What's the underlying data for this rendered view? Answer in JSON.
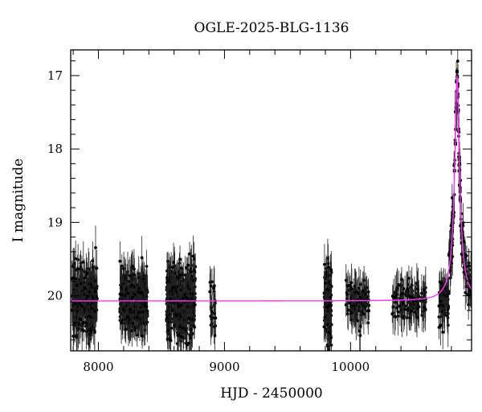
{
  "chart_data": {
    "type": "scatter",
    "title": "OGLE-2025-BLG-1136",
    "xlabel": "HJD - 2450000",
    "ylabel": "I magnitude",
    "xlim": [
      7780,
      10960
    ],
    "ylim": [
      20.75,
      16.65
    ],
    "y_inverted": true,
    "x_ticks": [
      8000,
      9000,
      10000
    ],
    "y_ticks": [
      17,
      18,
      19,
      20
    ],
    "grid": false,
    "legend": "none",
    "colors": {
      "points": "#000000",
      "model": "#ff33ff"
    },
    "model": {
      "baseline_mag": 20.07,
      "peak_time": 10845,
      "peak_mag": 17.0,
      "timescale_days": 28
    },
    "observing_seasons": [
      {
        "start": 7790,
        "end": 7990,
        "mean_mag": 20.05,
        "scatter": 0.32,
        "density": 1.0
      },
      {
        "start": 8170,
        "end": 8390,
        "mean_mag": 20.05,
        "scatter": 0.28,
        "density": 1.0
      },
      {
        "start": 8540,
        "end": 8770,
        "mean_mag": 20.08,
        "scatter": 0.35,
        "density": 1.1
      },
      {
        "start": 8880,
        "end": 8930,
        "mean_mag": 20.08,
        "scatter": 0.3,
        "density": 0.3
      },
      {
        "start": 9790,
        "end": 9850,
        "mean_mag": 20.1,
        "scatter": 0.38,
        "density": 1.2
      },
      {
        "start": 9960,
        "end": 10150,
        "mean_mag": 20.1,
        "scatter": 0.22,
        "density": 0.35
      },
      {
        "start": 10330,
        "end": 10600,
        "mean_mag": 20.05,
        "scatter": 0.18,
        "density": 0.3
      },
      {
        "start": 10700,
        "end": 10960,
        "mean_mag": 20.08,
        "scatter": 0.22,
        "density": 0.5
      }
    ]
  }
}
